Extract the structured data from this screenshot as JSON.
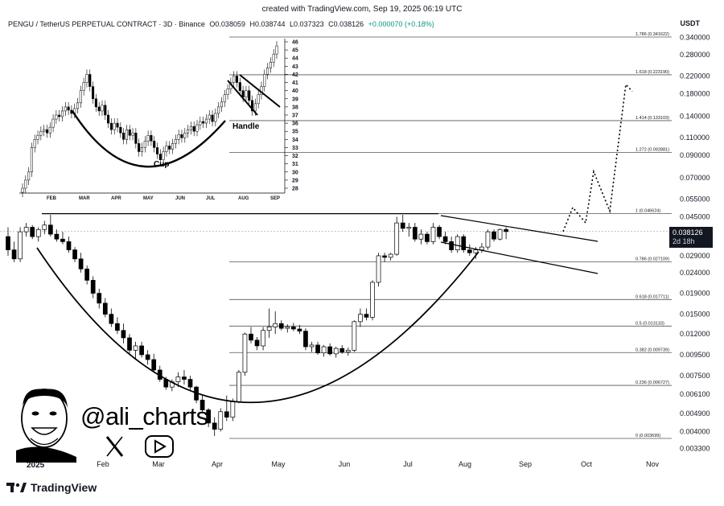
{
  "source_line": "created with TradingView.com, Sep 19, 2025 06:19 UTC",
  "header": {
    "symbol": "PENGU / TetherUS PERPETUAL CONTRACT · 3D · Binance",
    "open": "O0.038059",
    "high": "H0.038744",
    "low": "L0.037323",
    "close": "C0.038126",
    "change": "+0.000070 (+0.18%)"
  },
  "currency": "USDT",
  "last_price": {
    "value": "0.038126",
    "countdown": "2d 18h"
  },
  "branding": {
    "handle": "@ali_charts",
    "year": "2025",
    "footer": "TradingView",
    "x_icon": "x-logo-icon",
    "youtube_icon": "youtube-icon"
  },
  "colors": {
    "up": "#ffffff",
    "down": "#000000",
    "text": "#131722",
    "chg": "#089981",
    "tag": "#131722"
  },
  "chart_data": [
    {
      "type": "candlestick",
      "scale": "log",
      "x_tick_labels": [
        "Feb",
        "Mar",
        "Apr",
        "May",
        "Jun",
        "Jul",
        "Aug",
        "Sep",
        "Oct",
        "Nov"
      ],
      "y_tick_labels": [
        "0.340000",
        "0.280000",
        "0.220000",
        "0.180000",
        "0.140000",
        "0.110000",
        "0.090000",
        "0.070000",
        "0.055000",
        "0.045000",
        "0.029000",
        "0.024000",
        "0.019000",
        "0.015000",
        "0.012000",
        "0.009500",
        "0.007500",
        "0.006100",
        "0.004900",
        "0.004000",
        "0.003300"
      ],
      "ylim": [
        0.0031,
        0.36
      ],
      "fib_levels": [
        {
          "label": "0 (0.003699)",
          "value": 0.003699
        },
        {
          "label": "0.236 (0.006727)",
          "value": 0.006727
        },
        {
          "label": "0.382 (0.009739)",
          "value": 0.009739
        },
        {
          "label": "0.5 (0.013133)",
          "value": 0.013133
        },
        {
          "label": "0.618 (0.017711)",
          "value": 0.017711
        },
        {
          "label": "0.786 (0.027109)",
          "value": 0.027109
        },
        {
          "label": "1 (0.046624)",
          "value": 0.046624
        },
        {
          "label": "1.272 (0.092881)",
          "value": 0.092881
        },
        {
          "label": "1.414 (0.133103)",
          "value": 0.133103
        },
        {
          "label": "1.618 (0.223190)",
          "value": 0.22319
        },
        {
          "label": "1.786 (0.341622)",
          "value": 0.341622
        }
      ],
      "candles": [
        [
          0.036,
          0.04,
          0.029,
          0.031
        ],
        [
          0.031,
          0.034,
          0.027,
          0.028
        ],
        [
          0.028,
          0.04,
          0.027,
          0.038
        ],
        [
          0.038,
          0.042,
          0.036,
          0.04
        ],
        [
          0.04,
          0.041,
          0.035,
          0.036
        ],
        [
          0.036,
          0.04,
          0.034,
          0.039
        ],
        [
          0.039,
          0.043,
          0.037,
          0.041
        ],
        [
          0.041,
          0.046,
          0.036,
          0.037
        ],
        [
          0.037,
          0.039,
          0.034,
          0.035
        ],
        [
          0.035,
          0.038,
          0.033,
          0.034
        ],
        [
          0.034,
          0.036,
          0.03,
          0.031
        ],
        [
          0.031,
          0.032,
          0.027,
          0.028
        ],
        [
          0.028,
          0.03,
          0.024,
          0.025
        ],
        [
          0.025,
          0.026,
          0.021,
          0.022
        ],
        [
          0.022,
          0.023,
          0.018,
          0.019
        ],
        [
          0.019,
          0.02,
          0.016,
          0.017
        ],
        [
          0.017,
          0.018,
          0.0145,
          0.015
        ],
        [
          0.015,
          0.016,
          0.013,
          0.0135
        ],
        [
          0.0135,
          0.0145,
          0.012,
          0.0125
        ],
        [
          0.0125,
          0.0135,
          0.0108,
          0.0115
        ],
        [
          0.0115,
          0.012,
          0.0095,
          0.01
        ],
        [
          0.01,
          0.011,
          0.009,
          0.0105
        ],
        [
          0.0105,
          0.011,
          0.0092,
          0.0095
        ],
        [
          0.0095,
          0.01,
          0.0085,
          0.009
        ],
        [
          0.009,
          0.0096,
          0.0078,
          0.008
        ],
        [
          0.008,
          0.0084,
          0.007,
          0.0072
        ],
        [
          0.0072,
          0.0074,
          0.0064,
          0.0066
        ],
        [
          0.0066,
          0.0072,
          0.0063,
          0.007
        ],
        [
          0.007,
          0.0078,
          0.0066,
          0.0074
        ],
        [
          0.0074,
          0.008,
          0.0068,
          0.0072
        ],
        [
          0.0072,
          0.0075,
          0.0064,
          0.0066
        ],
        [
          0.0066,
          0.0067,
          0.0055,
          0.0057
        ],
        [
          0.0057,
          0.006,
          0.0049,
          0.0051
        ],
        [
          0.0051,
          0.0052,
          0.0042,
          0.0044
        ],
        [
          0.0044,
          0.0047,
          0.0038,
          0.0041
        ],
        [
          0.0041,
          0.0052,
          0.004,
          0.005
        ],
        [
          0.005,
          0.006,
          0.0045,
          0.0047
        ],
        [
          0.0047,
          0.0058,
          0.0045,
          0.0056
        ],
        [
          0.0056,
          0.008,
          0.0055,
          0.0078
        ],
        [
          0.0078,
          0.0122,
          0.0075,
          0.012
        ],
        [
          0.012,
          0.013,
          0.0108,
          0.0112
        ],
        [
          0.0112,
          0.0116,
          0.01,
          0.0105
        ],
        [
          0.0105,
          0.013,
          0.01,
          0.0125
        ],
        [
          0.0125,
          0.016,
          0.0115,
          0.013
        ],
        [
          0.013,
          0.0155,
          0.012,
          0.0135
        ],
        [
          0.0135,
          0.014,
          0.0125,
          0.0128
        ],
        [
          0.0128,
          0.0134,
          0.0122,
          0.013
        ],
        [
          0.013,
          0.0136,
          0.0124,
          0.0127
        ],
        [
          0.0127,
          0.0133,
          0.012,
          0.0124
        ],
        [
          0.0124,
          0.0128,
          0.01,
          0.0104
        ],
        [
          0.0104,
          0.011,
          0.0098,
          0.0106
        ],
        [
          0.0106,
          0.011,
          0.0095,
          0.0097
        ],
        [
          0.0097,
          0.0106,
          0.0093,
          0.0104
        ],
        [
          0.0104,
          0.0108,
          0.0094,
          0.0096
        ],
        [
          0.0096,
          0.0104,
          0.0092,
          0.0102
        ],
        [
          0.0102,
          0.0106,
          0.0096,
          0.0098
        ],
        [
          0.0098,
          0.0103,
          0.0094,
          0.01
        ],
        [
          0.01,
          0.014,
          0.0098,
          0.0138
        ],
        [
          0.0138,
          0.016,
          0.013,
          0.015
        ],
        [
          0.015,
          0.016,
          0.014,
          0.0145
        ],
        [
          0.0145,
          0.022,
          0.014,
          0.0215
        ],
        [
          0.0215,
          0.03,
          0.0205,
          0.029
        ],
        [
          0.029,
          0.03,
          0.027,
          0.0285
        ],
        [
          0.0285,
          0.03,
          0.0275,
          0.0295
        ],
        [
          0.0295,
          0.045,
          0.029,
          0.042
        ],
        [
          0.042,
          0.046,
          0.038,
          0.0395
        ],
        [
          0.0395,
          0.042,
          0.036,
          0.04
        ],
        [
          0.04,
          0.042,
          0.034,
          0.035
        ],
        [
          0.035,
          0.039,
          0.033,
          0.037
        ],
        [
          0.037,
          0.038,
          0.033,
          0.034
        ],
        [
          0.034,
          0.042,
          0.033,
          0.04
        ],
        [
          0.04,
          0.041,
          0.035,
          0.036
        ],
        [
          0.036,
          0.038,
          0.033,
          0.034
        ],
        [
          0.034,
          0.036,
          0.03,
          0.031
        ],
        [
          0.031,
          0.037,
          0.03,
          0.036
        ],
        [
          0.036,
          0.037,
          0.03,
          0.031
        ],
        [
          0.031,
          0.033,
          0.029,
          0.03
        ],
        [
          0.03,
          0.032,
          0.028,
          0.031
        ],
        [
          0.031,
          0.0335,
          0.03,
          0.032
        ],
        [
          0.032,
          0.039,
          0.031,
          0.038
        ],
        [
          0.038,
          0.039,
          0.034,
          0.035
        ],
        [
          0.035,
          0.0395,
          0.0345,
          0.039
        ],
        [
          0.039,
          0.04,
          0.035,
          0.0381
        ]
      ],
      "projection_path": [
        {
          "date_label": "Sep",
          "value": 0.038126
        },
        {
          "date_label": "Oct",
          "value": 0.05
        },
        {
          "date_label": "Oct",
          "value": 0.042
        },
        {
          "date_label": "Oct",
          "value": 0.075
        },
        {
          "date_label": "Oct",
          "value": 0.048
        },
        {
          "date_label": "Nov",
          "value": 0.2
        },
        {
          "date_label": "Nov",
          "value": 0.185
        }
      ]
    },
    {
      "type": "candlestick",
      "title": "inset",
      "y_tick_labels": [
        "46",
        "45",
        "44",
        "43",
        "42",
        "41",
        "40",
        "39",
        "38",
        "37",
        "36",
        "35",
        "34",
        "33",
        "32",
        "31",
        "30",
        "29",
        "28"
      ],
      "x_tick_labels": [
        "FEB",
        "MAR",
        "APR",
        "MAY",
        "JUN",
        "JUL",
        "AUG",
        "SEP"
      ],
      "ylim": [
        27.5,
        46.5
      ],
      "annotations": [
        "Cup",
        "Handle"
      ],
      "closes": [
        28,
        29,
        30,
        33,
        34,
        34.5,
        35,
        35.2,
        34.8,
        35.5,
        36.5,
        37,
        36.8,
        37.5,
        38,
        37.6,
        37.2,
        37.8,
        38.5,
        40,
        41,
        42,
        40.5,
        39,
        38,
        37.5,
        38.2,
        37,
        36,
        35.2,
        36,
        35.5,
        34.8,
        34,
        35.2,
        34.5,
        34.8,
        33.5,
        32.5,
        33,
        33.8,
        34.5,
        33.8,
        33,
        32.2,
        31.5,
        32.5,
        33.2,
        32.8,
        33.5,
        34,
        34.6,
        34.2,
        34.8,
        35.2,
        35.6,
        35,
        35.8,
        36.2,
        36,
        36.5,
        37,
        36.2,
        37.2,
        38,
        38.6,
        39.5,
        40.2,
        41,
        41.8,
        41,
        40,
        39.2,
        40,
        38.8,
        37.5,
        38.4,
        39.5,
        40.5,
        42,
        42.8,
        43.5,
        44.5,
        45.5
      ]
    }
  ]
}
